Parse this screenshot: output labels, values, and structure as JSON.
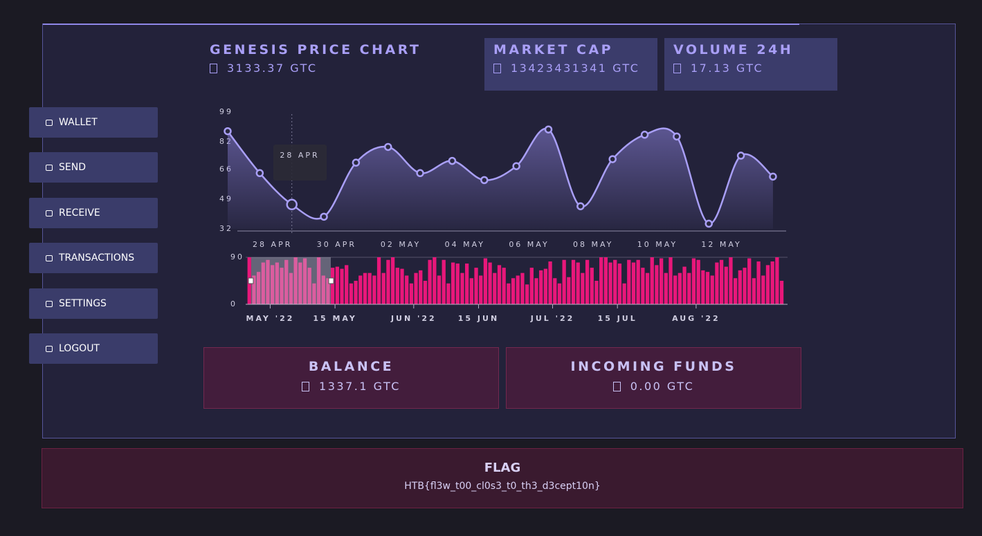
{
  "nav": [
    "WALLET",
    "SEND",
    "RECEIVE",
    "TRANSACTIONS",
    "SETTINGS",
    "LOGOUT"
  ],
  "price": {
    "title": "GENESIS PRICE CHART",
    "value": "3133.37 GTC"
  },
  "market_cap": {
    "title": "MARKET CAP",
    "value": "13423431341 GTC"
  },
  "volume": {
    "title": "VOLUME 24H",
    "value": "17.13 GTC"
  },
  "balance": {
    "title": "BALANCE",
    "value": "1337.1 GTC"
  },
  "incoming": {
    "title": "INCOMING FUNDS",
    "value": "0.00 GTC"
  },
  "flag": {
    "title": "FLAG",
    "value": "HTB{fl3w_t00_cl0s3_t0_th3_d3cept10n}"
  },
  "chart_data": [
    {
      "type": "line",
      "categories": [
        null,
        null,
        "28 APR",
        null,
        "30 APR",
        null,
        "02 MAY",
        null,
        "04 MAY",
        null,
        "06 MAY",
        null,
        "08 MAY",
        null,
        "10 MAY",
        null,
        "12 MAY",
        null
      ],
      "values": [
        88,
        64,
        46,
        39,
        70,
        79,
        64,
        71,
        60,
        68,
        89,
        45,
        72,
        86,
        85,
        35,
        74,
        62
      ],
      "color": "#a99ff7",
      "ylim": [
        32,
        99
      ],
      "yticks": [
        32,
        49,
        66,
        82,
        99
      ],
      "tooltip": "28 APR"
    },
    {
      "type": "bar",
      "values": [
        90,
        55,
        62,
        80,
        85,
        75,
        80,
        70,
        85,
        60,
        90,
        80,
        88,
        70,
        40,
        90,
        55,
        50,
        70,
        72,
        68,
        75,
        40,
        45,
        55,
        60,
        60,
        55,
        90,
        60,
        85,
        90,
        70,
        68,
        55,
        40,
        60,
        65,
        45,
        85,
        90,
        55,
        85,
        40,
        80,
        78,
        60,
        78,
        50,
        70,
        55,
        88,
        80,
        60,
        75,
        70,
        40,
        50,
        55,
        60,
        38,
        70,
        50,
        65,
        68,
        82,
        50,
        40,
        85,
        52,
        85,
        80,
        60,
        85,
        70,
        45,
        90,
        90,
        80,
        85,
        78,
        40,
        85,
        80,
        85,
        70,
        60,
        90,
        75,
        88,
        60,
        90,
        55,
        60,
        72,
        60,
        88,
        85,
        65,
        62,
        55,
        80,
        85,
        72,
        90,
        50,
        65,
        70,
        88,
        50,
        82,
        55,
        75,
        82,
        90,
        45
      ],
      "color": "#e8177a",
      "ylim": [
        0,
        90
      ],
      "yticks": [
        0,
        90
      ],
      "xlim": [
        0,
        116
      ],
      "xticks": [
        {
          "value": 5,
          "label": "MAY '22"
        },
        {
          "value": 19,
          "label": "15 MAY"
        },
        {
          "value": 36,
          "label": "JUN '22"
        },
        {
          "value": 50,
          "label": "15 JUN"
        },
        {
          "value": 66,
          "label": "JUL '22"
        },
        {
          "value": 80,
          "label": "15 JUL"
        },
        {
          "value": 97,
          "label": "AUG '22"
        }
      ]
    }
  ]
}
